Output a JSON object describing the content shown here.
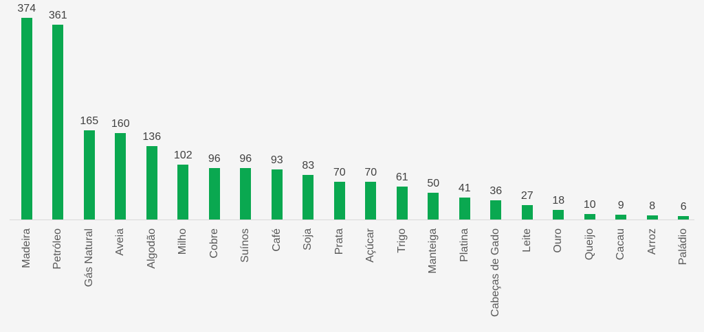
{
  "chart_data": {
    "type": "bar",
    "categories": [
      "Madeira",
      "Petróleo",
      "Gás Natural",
      "Aveia",
      "Algodão",
      "Milho",
      "Cobre",
      "Suínos",
      "Café",
      "Soja",
      "Prata",
      "Açúcar",
      "Trigo",
      "Manteiga",
      "Platina",
      "Cabeças de Gado",
      "Leite",
      "Ouro",
      "Queijo",
      "Cacau",
      "Arroz",
      "Paládio"
    ],
    "values": [
      374,
      361,
      165,
      160,
      136,
      102,
      96,
      96,
      93,
      83,
      70,
      70,
      61,
      50,
      41,
      36,
      27,
      18,
      10,
      9,
      8,
      6
    ],
    "title": "",
    "xlabel": "",
    "ylabel": "",
    "ylim": [
      0,
      374
    ],
    "grid": false,
    "legend": false,
    "data_labels": true,
    "category_label_rotation_deg": 90,
    "colors": {
      "bar": "#0AA850",
      "value_label": "#404040",
      "category_label": "#595959",
      "axis_line": "#D9D9D9",
      "background": "#F5F5F5"
    }
  }
}
